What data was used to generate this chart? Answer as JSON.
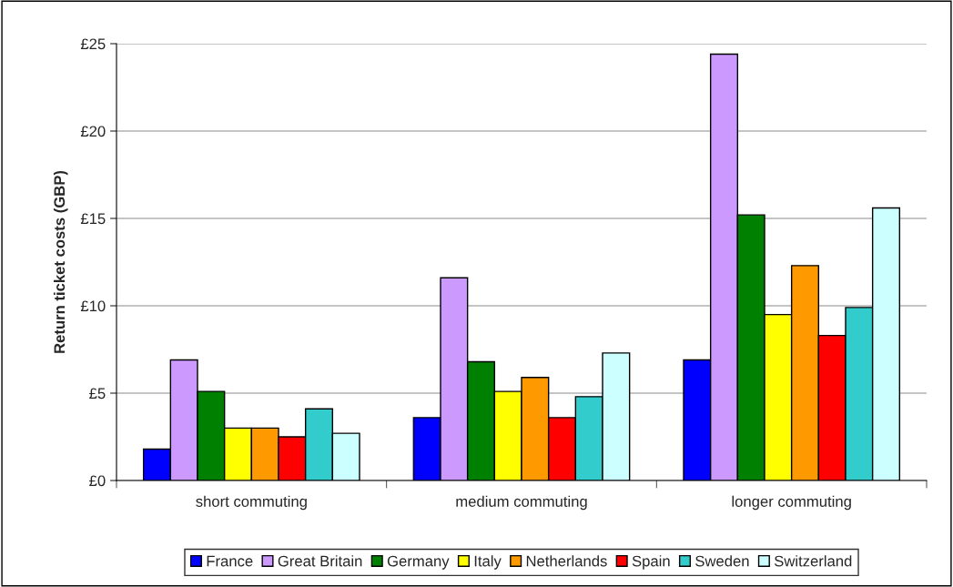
{
  "chart_data": {
    "type": "bar",
    "ylabel": "Return ticket costs (GBP)",
    "categories": [
      "short commuting",
      "medium commuting",
      "longer commuting"
    ],
    "series": [
      {
        "name": "France",
        "color": "#0000ff",
        "values": [
          1.8,
          3.6,
          6.9
        ]
      },
      {
        "name": "Great Britain",
        "color": "#cc99ff",
        "values": [
          6.9,
          11.6,
          24.4
        ]
      },
      {
        "name": "Germany",
        "color": "#008000",
        "values": [
          5.1,
          6.8,
          15.2
        ]
      },
      {
        "name": "Italy",
        "color": "#ffff00",
        "values": [
          3.0,
          5.1,
          9.5
        ]
      },
      {
        "name": "Netherlands",
        "color": "#ff9900",
        "values": [
          3.0,
          5.9,
          12.3
        ]
      },
      {
        "name": "Spain",
        "color": "#ff0000",
        "values": [
          2.5,
          3.6,
          8.3
        ]
      },
      {
        "name": "Sweden",
        "color": "#33cccc",
        "values": [
          4.1,
          4.8,
          9.9
        ]
      },
      {
        "name": "Switzerland",
        "color": "#ccffff",
        "values": [
          2.7,
          7.3,
          15.6
        ]
      }
    ],
    "ylim": [
      0,
      25
    ],
    "yticks": [
      {
        "value": 0,
        "label": "£0"
      },
      {
        "value": 5,
        "label": "£5"
      },
      {
        "value": 10,
        "label": "£10"
      },
      {
        "value": 15,
        "label": "£15"
      },
      {
        "value": 20,
        "label": "£20"
      },
      {
        "value": 25,
        "label": "£25"
      }
    ],
    "grid": "y",
    "legend": "bottom"
  }
}
